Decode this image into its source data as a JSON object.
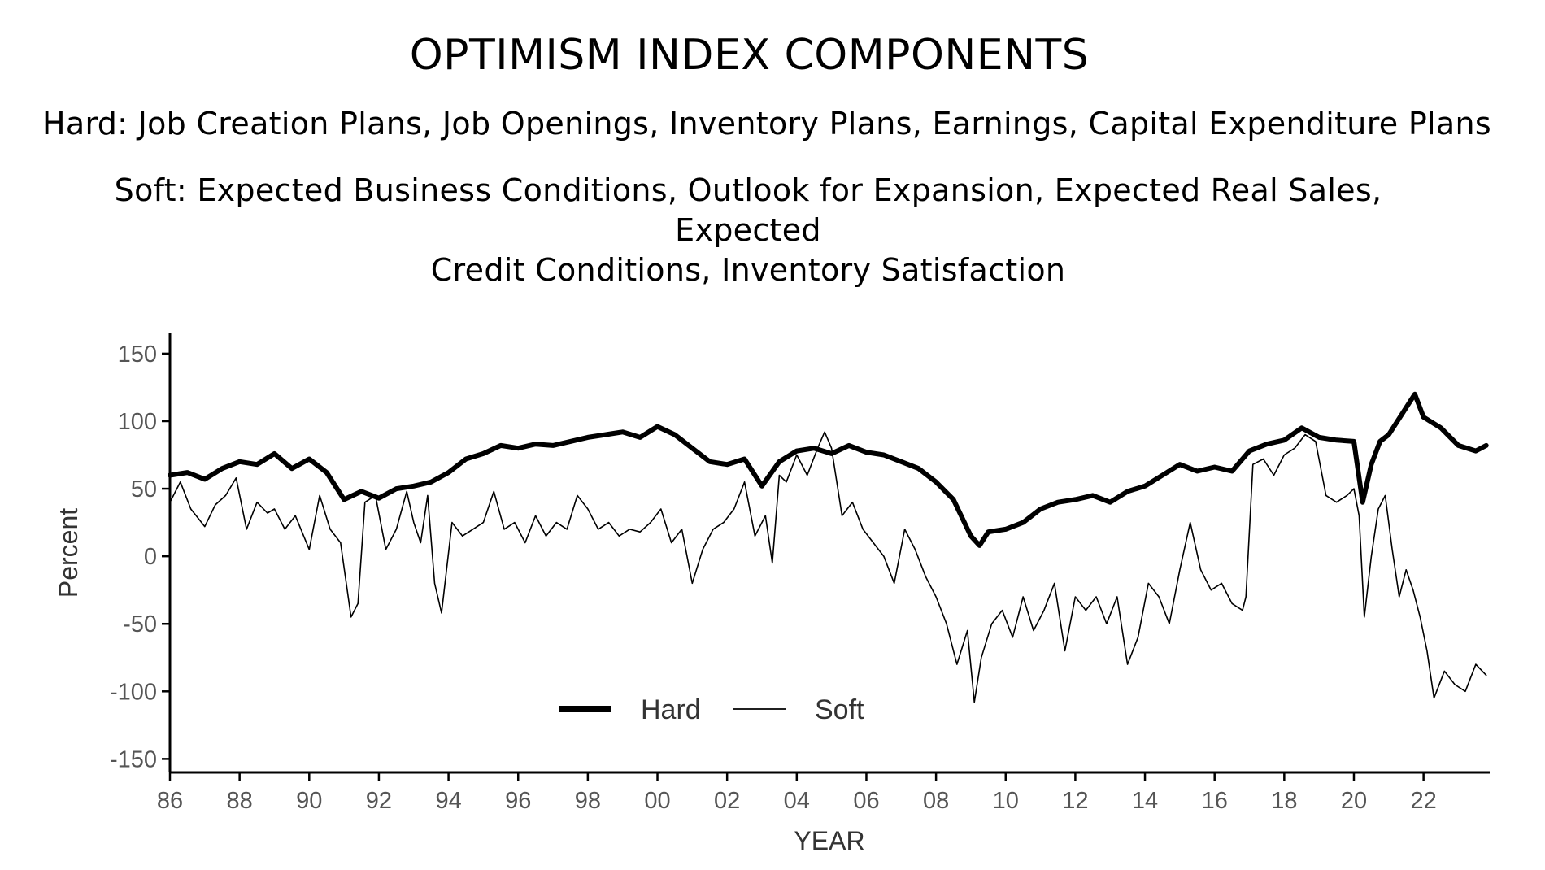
{
  "title": "OPTIMISM INDEX COMPONENTS",
  "hard_line": "Hard: Job Creation Plans, Job Openings, Inventory Plans, Earnings, Capital Expenditure Plans",
  "soft_line1": "Soft: Expected Business Conditions, Outlook for Expansion, Expected Real Sales, Expected",
  "soft_line2": "Credit Conditions, Inventory Satisfaction",
  "chart_data": {
    "type": "line",
    "xlabel": "YEAR",
    "ylabel": "Percent",
    "xlim": [
      1986,
      2023.9
    ],
    "ylim": [
      -160,
      165
    ],
    "yticks": [
      150,
      100,
      50,
      0,
      -50,
      -100,
      -150
    ],
    "xticks": [
      1986,
      1988,
      1990,
      1992,
      1994,
      1996,
      1998,
      2000,
      2002,
      2004,
      2006,
      2008,
      2010,
      2012,
      2014,
      2016,
      2018,
      2020,
      2022
    ],
    "xtick_labels": [
      "86",
      "88",
      "90",
      "92",
      "94",
      "96",
      "98",
      "00",
      "02",
      "04",
      "06",
      "08",
      "10",
      "12",
      "14",
      "16",
      "18",
      "20",
      "22"
    ],
    "grid": false,
    "legend": "bottom-center",
    "series": [
      {
        "name": "Hard",
        "style": "thick",
        "x": [
          1986.0,
          1986.5,
          1987.0,
          1987.5,
          1988.0,
          1988.5,
          1989.0,
          1989.5,
          1990.0,
          1990.5,
          1991.0,
          1991.5,
          1992.0,
          1992.5,
          1993.0,
          1993.5,
          1994.0,
          1994.5,
          1995.0,
          1995.5,
          1996.0,
          1996.5,
          1997.0,
          1997.5,
          1998.0,
          1998.5,
          1999.0,
          1999.5,
          2000.0,
          2000.5,
          2001.0,
          2001.5,
          2002.0,
          2002.5,
          2003.0,
          2003.5,
          2004.0,
          2004.5,
          2005.0,
          2005.5,
          2006.0,
          2006.5,
          2007.0,
          2007.5,
          2008.0,
          2008.5,
          2009.0,
          2009.25,
          2009.5,
          2010.0,
          2010.5,
          2011.0,
          2011.5,
          2012.0,
          2012.5,
          2013.0,
          2013.5,
          2014.0,
          2014.5,
          2015.0,
          2015.5,
          2016.0,
          2016.5,
          2017.0,
          2017.5,
          2018.0,
          2018.5,
          2019.0,
          2019.5,
          2020.0,
          2020.25,
          2020.5,
          2020.75,
          2021.0,
          2021.5,
          2021.75,
          2022.0,
          2022.5,
          2023.0,
          2023.5,
          2023.8
        ],
        "y": [
          60,
          62,
          57,
          65,
          70,
          68,
          76,
          65,
          72,
          62,
          42,
          48,
          43,
          50,
          52,
          55,
          62,
          72,
          76,
          82,
          80,
          83,
          82,
          85,
          88,
          90,
          92,
          88,
          96,
          90,
          80,
          70,
          68,
          72,
          52,
          70,
          78,
          80,
          76,
          82,
          77,
          75,
          70,
          65,
          55,
          42,
          15,
          8,
          18,
          20,
          25,
          35,
          40,
          42,
          45,
          40,
          48,
          52,
          60,
          68,
          63,
          66,
          63,
          78,
          83,
          86,
          95,
          88,
          86,
          85,
          40,
          68,
          85,
          90,
          110,
          120,
          103,
          95,
          82,
          78,
          82
        ]
      },
      {
        "name": "Soft",
        "style": "thin",
        "x": [
          1986.0,
          1986.3,
          1986.6,
          1987.0,
          1987.3,
          1987.6,
          1987.9,
          1988.2,
          1988.5,
          1988.8,
          1989.0,
          1989.3,
          1989.6,
          1990.0,
          1990.3,
          1990.6,
          1990.9,
          1991.2,
          1991.4,
          1991.6,
          1991.9,
          1992.2,
          1992.5,
          1992.8,
          1993.0,
          1993.2,
          1993.4,
          1993.6,
          1993.8,
          1994.1,
          1994.4,
          1994.7,
          1995.0,
          1995.3,
          1995.6,
          1995.9,
          1996.2,
          1996.5,
          1996.8,
          1997.1,
          1997.4,
          1997.7,
          1998.0,
          1998.3,
          1998.6,
          1998.9,
          1999.2,
          1999.5,
          1999.8,
          2000.1,
          2000.4,
          2000.7,
          2001.0,
          2001.3,
          2001.6,
          2001.9,
          2002.2,
          2002.5,
          2002.8,
          2003.1,
          2003.3,
          2003.5,
          2003.7,
          2004.0,
          2004.3,
          2004.6,
          2004.8,
          2005.0,
          2005.3,
          2005.6,
          2005.9,
          2006.2,
          2006.5,
          2006.8,
          2007.1,
          2007.4,
          2007.7,
          2008.0,
          2008.3,
          2008.6,
          2008.9,
          2009.1,
          2009.3,
          2009.6,
          2009.9,
          2010.2,
          2010.5,
          2010.8,
          2011.1,
          2011.4,
          2011.7,
          2012.0,
          2012.3,
          2012.6,
          2012.9,
          2013.2,
          2013.5,
          2013.8,
          2014.1,
          2014.4,
          2014.7,
          2015.0,
          2015.3,
          2015.6,
          2015.9,
          2016.2,
          2016.5,
          2016.8,
          2016.9,
          2017.1,
          2017.4,
          2017.7,
          2018.0,
          2018.3,
          2018.6,
          2018.9,
          2019.2,
          2019.5,
          2019.8,
          2020.0,
          2020.15,
          2020.3,
          2020.5,
          2020.7,
          2020.9,
          2021.1,
          2021.3,
          2021.5,
          2021.7,
          2021.9,
          2022.1,
          2022.3,
          2022.6,
          2022.9,
          2023.2,
          2023.5,
          2023.8
        ],
        "y": [
          40,
          55,
          35,
          22,
          38,
          45,
          58,
          20,
          40,
          32,
          35,
          20,
          30,
          5,
          45,
          20,
          10,
          -45,
          -35,
          40,
          45,
          5,
          20,
          48,
          25,
          10,
          45,
          -20,
          -42,
          25,
          15,
          20,
          25,
          48,
          20,
          25,
          10,
          30,
          15,
          25,
          20,
          45,
          35,
          20,
          25,
          15,
          20,
          18,
          25,
          35,
          10,
          20,
          -20,
          5,
          20,
          25,
          35,
          55,
          15,
          30,
          -5,
          60,
          55,
          75,
          60,
          80,
          92,
          80,
          30,
          40,
          20,
          10,
          0,
          -20,
          20,
          5,
          -15,
          -30,
          -50,
          -80,
          -55,
          -108,
          -75,
          -50,
          -40,
          -60,
          -30,
          -55,
          -40,
          -20,
          -70,
          -30,
          -40,
          -30,
          -50,
          -30,
          -80,
          -60,
          -20,
          -30,
          -50,
          -10,
          25,
          -10,
          -25,
          -20,
          -35,
          -40,
          -30,
          68,
          72,
          60,
          75,
          80,
          90,
          85,
          45,
          40,
          45,
          50,
          30,
          -45,
          0,
          35,
          45,
          5,
          -30,
          -10,
          -25,
          -45,
          -70,
          -105,
          -85,
          -95,
          -100,
          -80,
          -88
        ]
      }
    ]
  }
}
